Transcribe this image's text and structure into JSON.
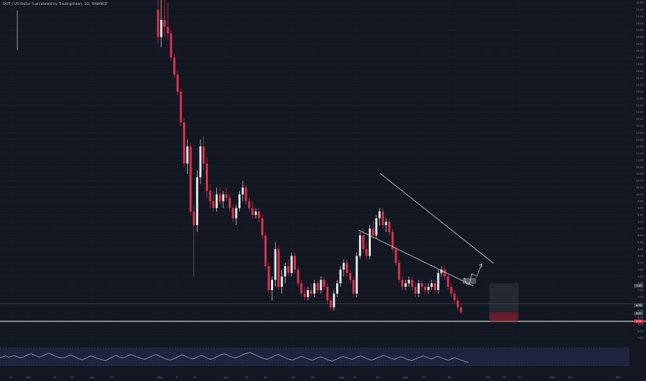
{
  "header": {
    "symbol_title": "DOT / US Dollar (calculated by TradingView), 1D, BINANCE"
  },
  "colors": {
    "background": "#131722",
    "up": "#e8e8ea",
    "down": "#e0334a",
    "trendline": "#d9d9d9",
    "rsi_line": "#d1d4dc",
    "rsi_band": "#2a2e55",
    "target_zone": "#3a3e48",
    "stop_zone": "#7a1f2e"
  },
  "chart_data": [
    {
      "type": "candlestick",
      "title": "",
      "x_ticks": [
        "21",
        "Mar",
        "15",
        "22",
        "Apr",
        "19",
        "May",
        "8",
        "15",
        "Jun",
        "21",
        "Jul",
        "15",
        "24",
        "Aug",
        "15",
        "22",
        "Sep",
        "15",
        "28",
        "Oct",
        "10",
        "17",
        "Nov",
        "15",
        "Dec"
      ],
      "y_ticks": [
        "15.60",
        "15.40",
        "15.20",
        "15.00",
        "14.80",
        "14.60",
        "14.40",
        "14.20",
        "14.00",
        "13.80",
        "13.60",
        "13.40",
        "13.20",
        "13.00",
        "12.80",
        "12.60",
        "12.40",
        "12.20",
        "12.00",
        "11.80",
        "11.60",
        "11.40",
        "11.20",
        "11.00",
        "10.80",
        "10.60",
        "10.40",
        "10.20",
        "10.00",
        "9.80",
        "9.60",
        "9.40",
        "9.20",
        "9.00",
        "8.80",
        "8.60",
        "8.40",
        "8.20",
        "8.00",
        "7.80",
        "7.60",
        "7.40",
        "7.20",
        "7.00",
        "6.80",
        "6.60",
        "6.40",
        "6.20",
        "6.00",
        "5.80"
      ],
      "ylim": [
        5.8,
        15.6
      ],
      "price_tags": [
        {
          "label": "7.33",
          "value": 7.33,
          "color": "#4a4e58"
        },
        {
          "label": "6.76",
          "value": 6.76,
          "color": "#4a4e58"
        },
        {
          "label": "6.52",
          "value": 6.52,
          "color": "#4a4e58"
        },
        {
          "label": "6.29",
          "value": 6.29,
          "color": "#e0334a"
        }
      ],
      "horizontal_levels": [
        6.8,
        6.29
      ],
      "candles": [
        {
          "o": 15.4,
          "h": 15.9,
          "l": 14.4,
          "c": 14.6
        },
        {
          "o": 14.6,
          "h": 15.7,
          "l": 14.3,
          "c": 15.1
        },
        {
          "o": 15.1,
          "h": 15.9,
          "l": 14.6,
          "c": 14.9
        },
        {
          "o": 14.9,
          "h": 15.6,
          "l": 14.5,
          "c": 14.7
        },
        {
          "o": 14.7,
          "h": 14.8,
          "l": 13.9,
          "c": 14.0
        },
        {
          "o": 14.0,
          "h": 14.1,
          "l": 13.4,
          "c": 13.5
        },
        {
          "o": 13.5,
          "h": 13.6,
          "l": 12.9,
          "c": 13.0
        },
        {
          "o": 13.0,
          "h": 13.1,
          "l": 12.0,
          "c": 12.1
        },
        {
          "o": 12.1,
          "h": 12.2,
          "l": 10.8,
          "c": 10.9
        },
        {
          "o": 10.9,
          "h": 11.6,
          "l": 10.6,
          "c": 11.4
        },
        {
          "o": 11.4,
          "h": 11.5,
          "l": 9.4,
          "c": 9.5
        },
        {
          "o": 9.5,
          "h": 9.7,
          "l": 7.6,
          "c": 9.1
        },
        {
          "o": 9.1,
          "h": 10.7,
          "l": 8.9,
          "c": 10.5
        },
        {
          "o": 10.5,
          "h": 11.6,
          "l": 10.3,
          "c": 11.4
        },
        {
          "o": 11.4,
          "h": 11.7,
          "l": 10.7,
          "c": 10.9
        },
        {
          "o": 10.9,
          "h": 11.1,
          "l": 9.9,
          "c": 10.1
        },
        {
          "o": 10.1,
          "h": 10.3,
          "l": 9.6,
          "c": 9.8
        },
        {
          "o": 9.8,
          "h": 10.1,
          "l": 9.5,
          "c": 9.6
        },
        {
          "o": 9.6,
          "h": 10.2,
          "l": 9.5,
          "c": 10.0
        },
        {
          "o": 10.0,
          "h": 10.2,
          "l": 9.7,
          "c": 9.8
        },
        {
          "o": 9.8,
          "h": 10.1,
          "l": 9.6,
          "c": 10.0
        },
        {
          "o": 10.0,
          "h": 10.2,
          "l": 9.8,
          "c": 9.9
        },
        {
          "o": 9.9,
          "h": 10.0,
          "l": 9.5,
          "c": 9.6
        },
        {
          "o": 9.6,
          "h": 9.7,
          "l": 9.2,
          "c": 9.3
        },
        {
          "o": 9.3,
          "h": 9.7,
          "l": 9.1,
          "c": 9.6
        },
        {
          "o": 9.6,
          "h": 10.1,
          "l": 9.5,
          "c": 10.0
        },
        {
          "o": 10.0,
          "h": 10.4,
          "l": 9.8,
          "c": 10.2
        },
        {
          "o": 10.2,
          "h": 10.3,
          "l": 9.7,
          "c": 9.8
        },
        {
          "o": 9.8,
          "h": 9.9,
          "l": 9.5,
          "c": 9.6
        },
        {
          "o": 9.6,
          "h": 9.8,
          "l": 9.3,
          "c": 9.4
        },
        {
          "o": 9.4,
          "h": 9.6,
          "l": 9.3,
          "c": 9.5
        },
        {
          "o": 9.5,
          "h": 9.6,
          "l": 9.2,
          "c": 9.3
        },
        {
          "o": 9.3,
          "h": 9.4,
          "l": 8.7,
          "c": 8.8
        },
        {
          "o": 8.8,
          "h": 8.9,
          "l": 7.8,
          "c": 7.9
        },
        {
          "o": 7.9,
          "h": 8.0,
          "l": 7.1,
          "c": 7.2
        },
        {
          "o": 7.2,
          "h": 7.6,
          "l": 6.9,
          "c": 7.5
        },
        {
          "o": 7.5,
          "h": 8.6,
          "l": 7.3,
          "c": 8.4
        },
        {
          "o": 8.4,
          "h": 8.5,
          "l": 7.2,
          "c": 7.3
        },
        {
          "o": 7.3,
          "h": 7.8,
          "l": 7.1,
          "c": 7.6
        },
        {
          "o": 7.6,
          "h": 8.0,
          "l": 7.4,
          "c": 7.9
        },
        {
          "o": 7.9,
          "h": 8.1,
          "l": 7.6,
          "c": 7.7
        },
        {
          "o": 7.7,
          "h": 8.3,
          "l": 7.6,
          "c": 8.2
        },
        {
          "o": 8.2,
          "h": 8.3,
          "l": 7.7,
          "c": 7.8
        },
        {
          "o": 7.8,
          "h": 7.9,
          "l": 7.3,
          "c": 7.4
        },
        {
          "o": 7.4,
          "h": 7.5,
          "l": 7.0,
          "c": 7.1
        },
        {
          "o": 7.1,
          "h": 7.3,
          "l": 6.9,
          "c": 7.0
        },
        {
          "o": 7.0,
          "h": 7.3,
          "l": 6.9,
          "c": 7.2
        },
        {
          "o": 7.2,
          "h": 7.4,
          "l": 7.0,
          "c": 7.1
        },
        {
          "o": 7.1,
          "h": 7.5,
          "l": 7.0,
          "c": 7.4
        },
        {
          "o": 7.4,
          "h": 7.5,
          "l": 7.1,
          "c": 7.2
        },
        {
          "o": 7.2,
          "h": 7.6,
          "l": 7.1,
          "c": 7.5
        },
        {
          "o": 7.5,
          "h": 7.6,
          "l": 7.2,
          "c": 7.3
        },
        {
          "o": 7.3,
          "h": 7.4,
          "l": 6.8,
          "c": 6.9
        },
        {
          "o": 6.9,
          "h": 7.0,
          "l": 6.6,
          "c": 6.7
        },
        {
          "o": 6.7,
          "h": 7.2,
          "l": 6.6,
          "c": 7.1
        },
        {
          "o": 7.1,
          "h": 7.5,
          "l": 7.0,
          "c": 7.4
        },
        {
          "o": 7.4,
          "h": 7.9,
          "l": 7.3,
          "c": 7.8
        },
        {
          "o": 7.8,
          "h": 8.1,
          "l": 7.6,
          "c": 8.0
        },
        {
          "o": 8.0,
          "h": 8.1,
          "l": 7.6,
          "c": 7.7
        },
        {
          "o": 7.7,
          "h": 7.8,
          "l": 7.4,
          "c": 7.5
        },
        {
          "o": 7.5,
          "h": 7.6,
          "l": 7.0,
          "c": 7.1
        },
        {
          "o": 7.1,
          "h": 8.3,
          "l": 7.0,
          "c": 8.2
        },
        {
          "o": 8.2,
          "h": 8.9,
          "l": 8.1,
          "c": 8.8
        },
        {
          "o": 8.8,
          "h": 9.0,
          "l": 8.3,
          "c": 8.4
        },
        {
          "o": 8.4,
          "h": 8.6,
          "l": 8.1,
          "c": 8.2
        },
        {
          "o": 8.2,
          "h": 9.1,
          "l": 8.1,
          "c": 9.0
        },
        {
          "o": 9.0,
          "h": 9.2,
          "l": 8.7,
          "c": 8.8
        },
        {
          "o": 8.8,
          "h": 9.4,
          "l": 8.7,
          "c": 9.3
        },
        {
          "o": 9.3,
          "h": 9.6,
          "l": 9.1,
          "c": 9.5
        },
        {
          "o": 9.5,
          "h": 9.6,
          "l": 9.0,
          "c": 9.1
        },
        {
          "o": 9.1,
          "h": 9.3,
          "l": 8.9,
          "c": 9.2
        },
        {
          "o": 9.2,
          "h": 9.3,
          "l": 8.8,
          "c": 8.9
        },
        {
          "o": 8.9,
          "h": 9.0,
          "l": 8.3,
          "c": 8.4
        },
        {
          "o": 8.4,
          "h": 8.5,
          "l": 7.9,
          "c": 8.0
        },
        {
          "o": 8.0,
          "h": 8.1,
          "l": 7.4,
          "c": 7.5
        },
        {
          "o": 7.5,
          "h": 7.6,
          "l": 7.2,
          "c": 7.3
        },
        {
          "o": 7.3,
          "h": 7.5,
          "l": 7.2,
          "c": 7.4
        },
        {
          "o": 7.4,
          "h": 7.6,
          "l": 7.3,
          "c": 7.5
        },
        {
          "o": 7.5,
          "h": 7.6,
          "l": 7.2,
          "c": 7.3
        },
        {
          "o": 7.3,
          "h": 7.4,
          "l": 7.0,
          "c": 7.1
        },
        {
          "o": 7.1,
          "h": 7.5,
          "l": 7.0,
          "c": 7.4
        },
        {
          "o": 7.4,
          "h": 7.5,
          "l": 7.2,
          "c": 7.3
        },
        {
          "o": 7.3,
          "h": 7.4,
          "l": 7.1,
          "c": 7.2
        },
        {
          "o": 7.2,
          "h": 7.4,
          "l": 7.1,
          "c": 7.3
        },
        {
          "o": 7.3,
          "h": 7.5,
          "l": 7.2,
          "c": 7.4
        },
        {
          "o": 7.4,
          "h": 7.5,
          "l": 7.1,
          "c": 7.2
        },
        {
          "o": 7.2,
          "h": 7.8,
          "l": 7.1,
          "c": 7.7
        },
        {
          "o": 7.7,
          "h": 7.9,
          "l": 7.6,
          "c": 7.8
        },
        {
          "o": 7.8,
          "h": 7.9,
          "l": 7.5,
          "c": 7.6
        },
        {
          "o": 7.6,
          "h": 7.7,
          "l": 7.2,
          "c": 7.3
        },
        {
          "o": 7.3,
          "h": 7.4,
          "l": 7.0,
          "c": 7.1
        },
        {
          "o": 7.1,
          "h": 7.2,
          "l": 6.8,
          "c": 6.9
        },
        {
          "o": 6.9,
          "h": 7.0,
          "l": 6.6,
          "c": 6.7
        },
        {
          "o": 6.7,
          "h": 6.8,
          "l": 6.5,
          "c": 6.55
        }
      ],
      "rsi_series": [
        48,
        50,
        52,
        49,
        51,
        53,
        50,
        47,
        49,
        52,
        55,
        57,
        54,
        51,
        49,
        52,
        55,
        58,
        56,
        53,
        50,
        48,
        47,
        49,
        52,
        54,
        51,
        48,
        45,
        43,
        46,
        49,
        52,
        50,
        47,
        45,
        43,
        41,
        44,
        48,
        51,
        53,
        50,
        47,
        49,
        52,
        55,
        53,
        50,
        48,
        46,
        44,
        47,
        50,
        53,
        55,
        52,
        49,
        46,
        44,
        42,
        45,
        48,
        51,
        54,
        52,
        49,
        47,
        45,
        48,
        51,
        53,
        50,
        47,
        44,
        46,
        49,
        52,
        55,
        57,
        54,
        51,
        49,
        47,
        50,
        53,
        56,
        58,
        60,
        57,
        54,
        51,
        48,
        46,
        44,
        47,
        50,
        53,
        55,
        52,
        49,
        46,
        44,
        42,
        45,
        48,
        51,
        49,
        46,
        44,
        42,
        45,
        48,
        50,
        47,
        44,
        42,
        40,
        43,
        46,
        49,
        51,
        48,
        46,
        44,
        47,
        50,
        52,
        49,
        46,
        44,
        42,
        45,
        48,
        50,
        53,
        51,
        48,
        46,
        44,
        47,
        50,
        48,
        45,
        43,
        41,
        44,
        47,
        49,
        52,
        50,
        47,
        45,
        48,
        51,
        49,
        46,
        44,
        42,
        45,
        48,
        46,
        43,
        41,
        39,
        37
      ],
      "rsi_band": [
        30,
        70
      ]
    }
  ]
}
